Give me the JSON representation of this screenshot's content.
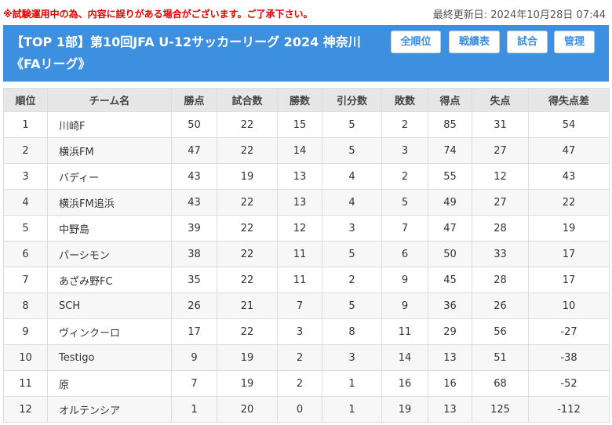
{
  "notice": "※試験運用中の為、内容に誤りがある場合がございます。ご了承下さい。",
  "last_updated": "最終更新日: 2024年10月28日 07:44",
  "header": {
    "title_line1": "【TOP 1部】第10回JFA U-12サッカーリーグ 2024 神奈川",
    "title_line2": "《FAリーグ》",
    "nav": {
      "all_standings": "全順位",
      "record_table": "戦績表",
      "matches": "試合",
      "admin": "管理"
    }
  },
  "colors": {
    "accent": "#3d8fdf",
    "notice": "#e60000",
    "header_bg": "#e6e6e6"
  },
  "table": {
    "columns": [
      "順位",
      "チーム名",
      "勝点",
      "試合数",
      "勝数",
      "引分数",
      "敗数",
      "得点",
      "失点",
      "得失点差"
    ],
    "rows": [
      [
        "1",
        "川崎F",
        "50",
        "22",
        "15",
        "5",
        "2",
        "85",
        "31",
        "54"
      ],
      [
        "2",
        "横浜FM",
        "47",
        "22",
        "14",
        "5",
        "3",
        "74",
        "27",
        "47"
      ],
      [
        "3",
        "バディー",
        "43",
        "19",
        "13",
        "4",
        "2",
        "55",
        "12",
        "43"
      ],
      [
        "4",
        "横浜FM追浜",
        "43",
        "22",
        "13",
        "4",
        "5",
        "49",
        "27",
        "22"
      ],
      [
        "5",
        "中野島",
        "39",
        "22",
        "12",
        "3",
        "7",
        "47",
        "28",
        "19"
      ],
      [
        "6",
        "パーシモン",
        "38",
        "22",
        "11",
        "5",
        "6",
        "50",
        "33",
        "17"
      ],
      [
        "7",
        "あざみ野FC",
        "35",
        "22",
        "11",
        "2",
        "9",
        "45",
        "28",
        "17"
      ],
      [
        "8",
        "SCH",
        "26",
        "21",
        "7",
        "5",
        "9",
        "36",
        "26",
        "10"
      ],
      [
        "9",
        "ヴィンクーロ",
        "17",
        "22",
        "3",
        "8",
        "11",
        "29",
        "56",
        "-27"
      ],
      [
        "10",
        "Testigo",
        "9",
        "19",
        "2",
        "3",
        "14",
        "13",
        "51",
        "-38"
      ],
      [
        "11",
        "原",
        "7",
        "19",
        "2",
        "1",
        "16",
        "16",
        "68",
        "-52"
      ],
      [
        "12",
        "オルテンシア",
        "1",
        "20",
        "0",
        "1",
        "19",
        "13",
        "125",
        "-112"
      ]
    ]
  }
}
